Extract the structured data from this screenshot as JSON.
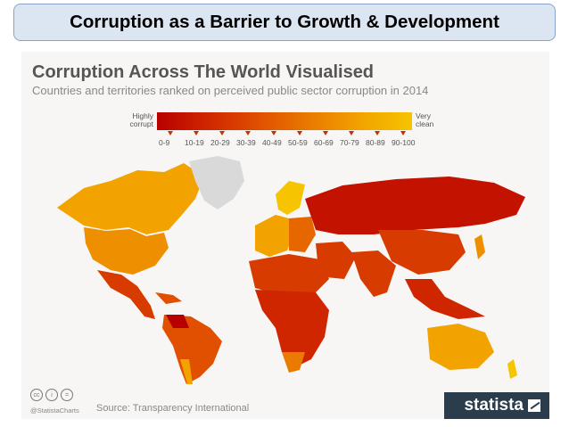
{
  "slide": {
    "title": "Corruption as a Barrier to Growth & Development"
  },
  "infographic": {
    "title": "Corruption Across The World Visualised",
    "subtitle": "Countries and territories ranked on perceived public sector corruption in 2014",
    "legend": {
      "left_label": "Highly corrupt",
      "right_label": "Very clean",
      "ranges": [
        "0-9",
        "10-19",
        "20-29",
        "30-39",
        "40-49",
        "50-59",
        "60-69",
        "70-79",
        "80-89",
        "90-100"
      ],
      "colors": [
        "#b80000",
        "#c41200",
        "#cf2600",
        "#d83b00",
        "#e05000",
        "#e66600",
        "#ea7a00",
        "#ee8f00",
        "#f2a300",
        "#f6c400"
      ]
    },
    "map_colors": {
      "no_data": "#d9d9d9",
      "ocean": "#f7f6f4"
    },
    "footer": {
      "handle": "@StatistaCharts",
      "source": "Source: Transparency International",
      "brand": "statista",
      "license_icons": [
        "cc-icon",
        "by-icon",
        "nd-icon"
      ],
      "license_glyphs": [
        "cc",
        "i",
        "="
      ]
    }
  }
}
